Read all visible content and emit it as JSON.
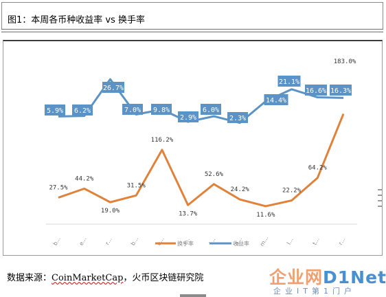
{
  "caption": "图1：本周各币种收益率 vs 换手率",
  "source": {
    "prefix": "数据来源：",
    "brand": "CoinMarketCap",
    "suffix": "，火币区块链研究院"
  },
  "watermark": {
    "main_cn": "企业网",
    "main_latin": "D1Net",
    "sub": "企业IT第1门户"
  },
  "colors": {
    "turnover": "#e0823a",
    "return": "#5b93c6",
    "return_label_bg": "#5b93c6",
    "label_text": "#333333",
    "axis": "#d9d9d9",
    "tick_text": "#888888"
  },
  "chart_data": {
    "type": "line",
    "title": "",
    "categories": [
      "b…",
      "e…",
      "r…",
      "b…",
      "e…",
      "l…",
      "l…",
      "a…",
      "m…",
      "l…",
      "t…",
      "r…"
    ],
    "series": [
      {
        "name": "换手率",
        "color": "#e0823a",
        "values": [
          27.5,
          44.2,
          19.0,
          31.5,
          116.2,
          13.7,
          52.6,
          24.2,
          11.6,
          22.2,
          64.2,
          183.0
        ],
        "labels": [
          "27.5%",
          "44.2%",
          "19.0%",
          "31.5%",
          "116.2%",
          "13.7%",
          "52.6%",
          "24.2%",
          "11.6%",
          "22.2%",
          "64.2%",
          "183.0%"
        ]
      },
      {
        "name": "收益率",
        "color": "#5b93c6",
        "values": [
          5.9,
          6.2,
          26.7,
          7.0,
          9.8,
          2.9,
          6.0,
          2.3,
          14.4,
          21.1,
          16.6,
          16.3
        ],
        "labels": [
          "5.9%",
          "6.2%",
          "26.7%",
          "7.0%",
          "9.8%",
          "2.9%",
          "6.0%",
          "2.3%",
          "14.4%",
          "21.1%",
          "16.6%",
          "16.3%"
        ]
      }
    ],
    "legend_position": "bottom",
    "grid": false
  }
}
